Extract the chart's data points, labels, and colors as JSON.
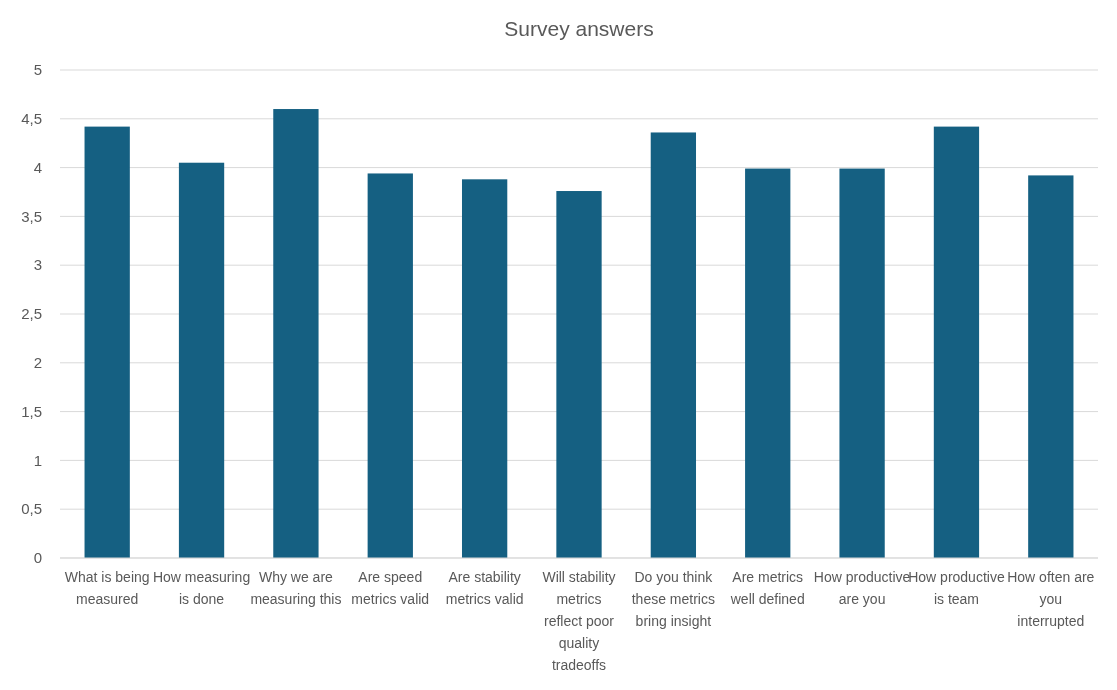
{
  "chart_data": {
    "type": "bar",
    "title": "Survey answers",
    "categories": [
      "What is being measured",
      "How measuring is done",
      "Why we are measuring this",
      "Are speed metrics valid",
      "Are stability metrics valid",
      "Will stability metrics reflect poor quality tradeoffs",
      "Do you think these metrics bring insight",
      "Are metrics well defined",
      "How productive are you",
      "How productive is team",
      "How often are you interrupted"
    ],
    "values": [
      4.42,
      4.05,
      4.6,
      3.94,
      3.88,
      3.76,
      4.36,
      3.99,
      3.99,
      4.42,
      3.92
    ],
    "color": "#156082",
    "ylim": [
      0,
      5
    ],
    "yticks": [
      0,
      {
        "value": 0.5,
        "label": "0,5"
      },
      1,
      {
        "value": 1.5,
        "label": "1,5"
      },
      2,
      {
        "value": 2.5,
        "label": "2,5"
      },
      3,
      {
        "value": 3.5,
        "label": "3,5"
      },
      4,
      {
        "value": 4.5,
        "label": "4,5"
      },
      5
    ],
    "grid": "y"
  }
}
